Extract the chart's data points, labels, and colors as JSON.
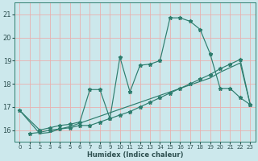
{
  "xlabel": "Humidex (Indice chaleur)",
  "bg_color": "#cce8ec",
  "grid_color": "#e8b0b0",
  "line_color": "#2e7d6e",
  "xlim": [
    -0.5,
    23.5
  ],
  "ylim": [
    15.5,
    21.5
  ],
  "yticks": [
    16,
    17,
    18,
    19,
    20,
    21
  ],
  "xticks": [
    0,
    1,
    2,
    3,
    4,
    5,
    6,
    7,
    8,
    9,
    10,
    11,
    12,
    13,
    14,
    15,
    16,
    17,
    18,
    19,
    20,
    21,
    22,
    23
  ],
  "line1_x": [
    0,
    1,
    2,
    3,
    4,
    5,
    6,
    7,
    8,
    9,
    10,
    11,
    12,
    13,
    14,
    15,
    16,
    17,
    18,
    19,
    20,
    21,
    22,
    23
  ],
  "line1_y": [
    16.85,
    16.35,
    15.85,
    15.9,
    16.05,
    16.15,
    16.3,
    16.45,
    16.6,
    16.75,
    16.9,
    17.05,
    17.2,
    17.35,
    17.5,
    17.65,
    17.8,
    17.95,
    18.1,
    18.25,
    18.5,
    18.7,
    18.9,
    17.1
  ],
  "line2_x": [
    0,
    2,
    3,
    4,
    5,
    6,
    7,
    8,
    9,
    10,
    11,
    12,
    13,
    14,
    15,
    16,
    17,
    18,
    19,
    20,
    21,
    22,
    23
  ],
  "line2_y": [
    16.85,
    16.0,
    16.1,
    16.2,
    16.25,
    16.35,
    17.75,
    17.75,
    16.5,
    19.15,
    17.65,
    18.8,
    18.85,
    19.0,
    20.85,
    20.85,
    20.7,
    20.35,
    19.3,
    17.8,
    17.8,
    17.4,
    17.1
  ],
  "line3_x": [
    1,
    2,
    3,
    4,
    5,
    6,
    7,
    8,
    9,
    10,
    11,
    12,
    13,
    14,
    15,
    16,
    17,
    18,
    19,
    20,
    21,
    22,
    23
  ],
  "line3_y": [
    15.85,
    15.9,
    16.0,
    16.05,
    16.1,
    16.2,
    16.2,
    16.35,
    16.5,
    16.65,
    16.8,
    17.0,
    17.2,
    17.4,
    17.6,
    17.8,
    18.0,
    18.2,
    18.4,
    18.65,
    18.85,
    19.05,
    17.1
  ],
  "marker": "*",
  "markersize": 3.5
}
